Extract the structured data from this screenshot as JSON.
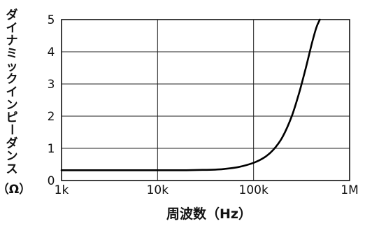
{
  "chart_data": {
    "type": "line",
    "xlabel": "周波数（Hz）",
    "ylabel": "ダイナミックインピーダンス",
    "ylabel_unit": "（Ω）",
    "xscale": "log",
    "xlim": [
      1000,
      1000000
    ],
    "ylim": [
      0,
      5
    ],
    "grid": true,
    "x_ticks": [
      1000,
      10000,
      100000,
      1000000
    ],
    "x_tick_labels": [
      "1k",
      "10k",
      "100k",
      "1M"
    ],
    "y_ticks": [
      0,
      1,
      2,
      3,
      4,
      5
    ],
    "y_tick_labels": [
      "0",
      "1",
      "2",
      "3",
      "4",
      "5"
    ],
    "series": [
      {
        "color": "#000000",
        "x": [
          1000,
          2000,
          5000,
          10000,
          20000,
          30000,
          40000,
          50000,
          70000,
          100000,
          130000,
          160000,
          200000,
          250000,
          300000,
          350000,
          400000,
          450000,
          490000
        ],
        "y": [
          0.32,
          0.32,
          0.32,
          0.32,
          0.32,
          0.33,
          0.34,
          0.36,
          0.42,
          0.55,
          0.72,
          0.95,
          1.35,
          2.0,
          2.75,
          3.5,
          4.2,
          4.75,
          5.0
        ]
      }
    ]
  }
}
